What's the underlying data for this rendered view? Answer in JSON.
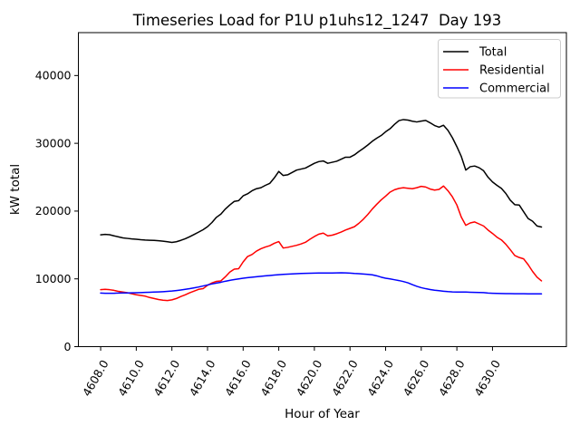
{
  "figure": {
    "background": "#ffffff"
  },
  "chart_data": {
    "type": "line",
    "title": "Timeseries Load for P1U p1uhs12_1247  Day 193",
    "xlabel": "Hour of Year",
    "ylabel": "kW total",
    "xlim": [
      4606.75,
      4634.15
    ],
    "ylim": [
      0,
      46330
    ],
    "grid": false,
    "xticks": [
      4608,
      4610,
      4612,
      4614,
      4616,
      4618,
      4620,
      4622,
      4624,
      4626,
      4628,
      4630
    ],
    "xtick_labels": [
      "4608.0",
      "4610.0",
      "4612.0",
      "4614.0",
      "4616.0",
      "4618.0",
      "4620.0",
      "4622.0",
      "4624.0",
      "4626.0",
      "4628.0",
      "4630.0"
    ],
    "yticks": [
      0,
      10000,
      20000,
      30000,
      40000
    ],
    "ytick_labels": [
      "0",
      "10000",
      "20000",
      "30000",
      "40000"
    ],
    "legend": {
      "position": "upper right",
      "entries": [
        "Total",
        "Residential",
        "Commercial"
      ]
    },
    "x": [
      4608.0,
      4608.25,
      4608.5,
      4608.75,
      4609.0,
      4609.25,
      4609.5,
      4609.75,
      4610.0,
      4610.25,
      4610.5,
      4610.75,
      4611.0,
      4611.25,
      4611.5,
      4611.75,
      4612.0,
      4612.25,
      4612.5,
      4612.75,
      4613.0,
      4613.25,
      4613.5,
      4613.75,
      4614.0,
      4614.25,
      4614.5,
      4614.75,
      4615.0,
      4615.25,
      4615.5,
      4615.75,
      4616.0,
      4616.25,
      4616.5,
      4616.75,
      4617.0,
      4617.25,
      4617.5,
      4617.75,
      4618.0,
      4618.25,
      4618.5,
      4618.75,
      4619.0,
      4619.25,
      4619.5,
      4619.75,
      4620.0,
      4620.25,
      4620.5,
      4620.75,
      4621.0,
      4621.25,
      4621.5,
      4621.75,
      4622.0,
      4622.25,
      4622.5,
      4622.75,
      4623.0,
      4623.25,
      4623.5,
      4623.75,
      4624.0,
      4624.25,
      4624.5,
      4624.75,
      4625.0,
      4625.25,
      4625.5,
      4625.75,
      4626.0,
      4626.25,
      4626.5,
      4626.75,
      4627.0,
      4627.25,
      4627.5,
      4627.75,
      4628.0,
      4628.25,
      4628.5,
      4628.75,
      4629.0,
      4629.25,
      4629.5,
      4629.75,
      4630.0,
      4630.25,
      4630.5,
      4630.75,
      4631.0,
      4631.25,
      4631.5,
      4631.75,
      4632.0,
      4632.25,
      4632.5,
      4632.75
    ],
    "series": [
      {
        "name": "Total",
        "color": "#000000",
        "values": [
          16500,
          16560,
          16510,
          16350,
          16200,
          16050,
          15970,
          15900,
          15850,
          15780,
          15730,
          15700,
          15680,
          15620,
          15560,
          15470,
          15380,
          15480,
          15680,
          15920,
          16220,
          16560,
          16900,
          17250,
          17700,
          18320,
          19080,
          19560,
          20300,
          20900,
          21430,
          21550,
          22250,
          22550,
          23000,
          23300,
          23450,
          23800,
          24100,
          24900,
          25850,
          25250,
          25350,
          25700,
          26050,
          26200,
          26350,
          26700,
          27050,
          27300,
          27400,
          27050,
          27200,
          27350,
          27650,
          27950,
          27950,
          28300,
          28800,
          29250,
          29750,
          30300,
          30750,
          31150,
          31700,
          32150,
          32800,
          33350,
          33500,
          33430,
          33260,
          33150,
          33280,
          33380,
          33020,
          32620,
          32380,
          32660,
          31900,
          30820,
          29500,
          28050,
          26050,
          26550,
          26650,
          26400,
          25950,
          25000,
          24300,
          23800,
          23350,
          22600,
          21600,
          20950,
          20900,
          19900,
          18900,
          18500,
          17800,
          17650
        ]
      },
      {
        "name": "Residential",
        "color": "#ff0000",
        "values": [
          8400,
          8460,
          8400,
          8300,
          8150,
          8050,
          7950,
          7800,
          7650,
          7550,
          7450,
          7250,
          7100,
          6950,
          6850,
          6800,
          6900,
          7100,
          7400,
          7650,
          7950,
          8200,
          8450,
          8550,
          9050,
          9400,
          9630,
          9700,
          10300,
          11000,
          11430,
          11500,
          12500,
          13300,
          13600,
          14100,
          14450,
          14700,
          14900,
          15250,
          15500,
          14550,
          14650,
          14800,
          14950,
          15150,
          15400,
          15850,
          16250,
          16600,
          16750,
          16350,
          16450,
          16650,
          16900,
          17200,
          17450,
          17700,
          18200,
          18800,
          19500,
          20300,
          21000,
          21650,
          22200,
          22800,
          23150,
          23350,
          23450,
          23370,
          23300,
          23450,
          23650,
          23550,
          23250,
          23100,
          23200,
          23700,
          23000,
          22100,
          20900,
          19100,
          17900,
          18250,
          18400,
          18100,
          17800,
          17200,
          16700,
          16150,
          15750,
          15100,
          14300,
          13450,
          13150,
          12950,
          12100,
          11100,
          10250,
          9700
        ]
      },
      {
        "name": "Commercial",
        "color": "#0000ff",
        "values": [
          7900,
          7880,
          7870,
          7880,
          7900,
          7920,
          7930,
          7940,
          7960,
          7980,
          8000,
          8020,
          8050,
          8080,
          8110,
          8150,
          8200,
          8280,
          8360,
          8450,
          8550,
          8670,
          8800,
          8950,
          9100,
          9250,
          9380,
          9500,
          9650,
          9780,
          9900,
          10000,
          10100,
          10180,
          10250,
          10320,
          10380,
          10440,
          10500,
          10560,
          10620,
          10670,
          10700,
          10730,
          10760,
          10790,
          10810,
          10830,
          10850,
          10860,
          10870,
          10870,
          10870,
          10880,
          10890,
          10880,
          10850,
          10800,
          10770,
          10720,
          10670,
          10600,
          10450,
          10250,
          10100,
          9990,
          9870,
          9750,
          9600,
          9420,
          9150,
          8900,
          8700,
          8550,
          8430,
          8320,
          8250,
          8180,
          8120,
          8080,
          8060,
          8060,
          8050,
          8020,
          8000,
          7990,
          7970,
          7900,
          7870,
          7850,
          7840,
          7830,
          7820,
          7810,
          7800,
          7800,
          7790,
          7790,
          7780,
          7780
        ]
      }
    ],
    "colors": {
      "axis": "#000000",
      "legend_border": "#cccccc",
      "background": "#ffffff"
    }
  }
}
